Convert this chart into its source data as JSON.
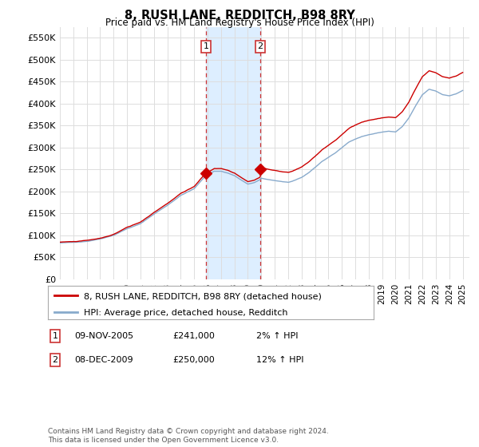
{
  "title": "8, RUSH LANE, REDDITCH, B98 8RY",
  "subtitle": "Price paid vs. HM Land Registry's House Price Index (HPI)",
  "ylim": [
    0,
    575000
  ],
  "yticks": [
    0,
    50000,
    100000,
    150000,
    200000,
    250000,
    300000,
    350000,
    400000,
    450000,
    500000,
    550000
  ],
  "background_color": "#ffffff",
  "grid_color": "#dddddd",
  "highlight_color": "#ddeeff",
  "dashed_color": "#cc3333",
  "legend_line1": "8, RUSH LANE, REDDITCH, B98 8RY (detached house)",
  "legend_line2": "HPI: Average price, detached house, Redditch",
  "footnote": "Contains HM Land Registry data © Crown copyright and database right 2024.\nThis data is licensed under the Open Government Licence v3.0.",
  "line_color_red": "#cc0000",
  "line_color_blue": "#88aacc",
  "t1_year": 2005.875,
  "t2_year": 2009.917,
  "t1_price": 241000,
  "t2_price": 250000,
  "t1_date": "09-NOV-2005",
  "t2_date": "08-DEC-2009",
  "t1_pct": "2% ↑ HPI",
  "t2_pct": "12% ↑ HPI"
}
